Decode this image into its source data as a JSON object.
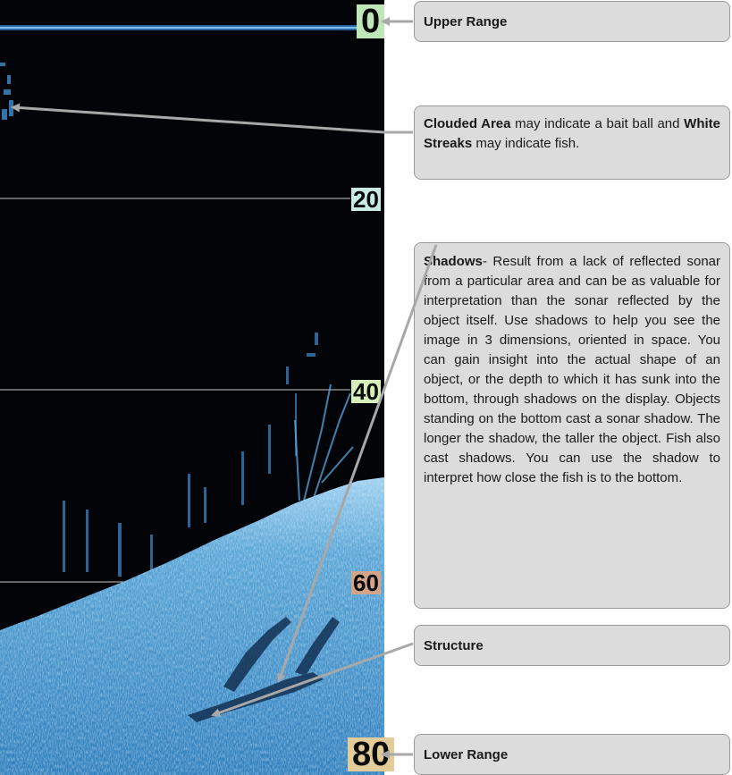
{
  "depth_scale": [
    "0",
    "20",
    "40",
    "60",
    "80"
  ],
  "callouts": {
    "upper_range": {
      "label": "Upper Range"
    },
    "clouded_area": {
      "bold1": "Clouded Area",
      "text1": " may indicate a bait ball and ",
      "bold2": "White Streaks",
      "text2": " may indicate fish."
    },
    "shadows": {
      "bold": "Shadows",
      "text": "- Result from a lack of reflected sonar from a particular area and can be as valuable for interpretation than the sonar reflected by the object itself. Use shadows to help you see the image in 3 dimensions, oriented in space. You can gain insight into the actual shape of an object, or the depth to which it has sunk into the bottom, through shadows on the display. Objects standing on the bottom cast a sonar shadow. The longer the shadow, the taller the object. Fish also cast shadows. You can use the shadow to interpret how close the fish is to the bottom."
    },
    "structure": {
      "label": "Structure"
    },
    "lower_range": {
      "label": "Lower Range"
    }
  },
  "colors": {
    "sonar_background": "#020408",
    "bottom_return": "#4f9fd0",
    "callout_fill": "#dcdcdc",
    "arrow": "#a8a8a8"
  }
}
